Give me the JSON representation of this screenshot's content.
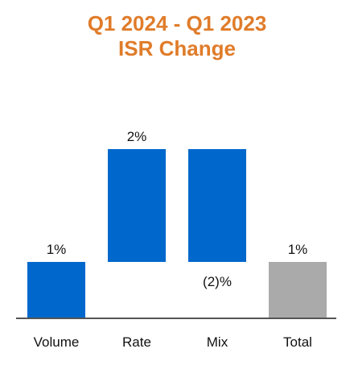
{
  "chart_data": {
    "type": "bar",
    "subtype": "waterfall",
    "title_line1": "Q1 2024 - Q1 2023",
    "title_line2": "ISR Change",
    "categories": [
      "Volume",
      "Rate",
      "Mix",
      "Total"
    ],
    "values": [
      1,
      2,
      -2,
      1
    ],
    "data_labels": [
      "1%",
      "2%",
      "(2)%",
      "1%"
    ],
    "bar_colors": [
      "#0068CC",
      "#0068CC",
      "#0068CC",
      "#AAAAAA"
    ],
    "title_color": "#E07C2A",
    "axis_color": "#555555",
    "grid": false,
    "legend": false
  }
}
